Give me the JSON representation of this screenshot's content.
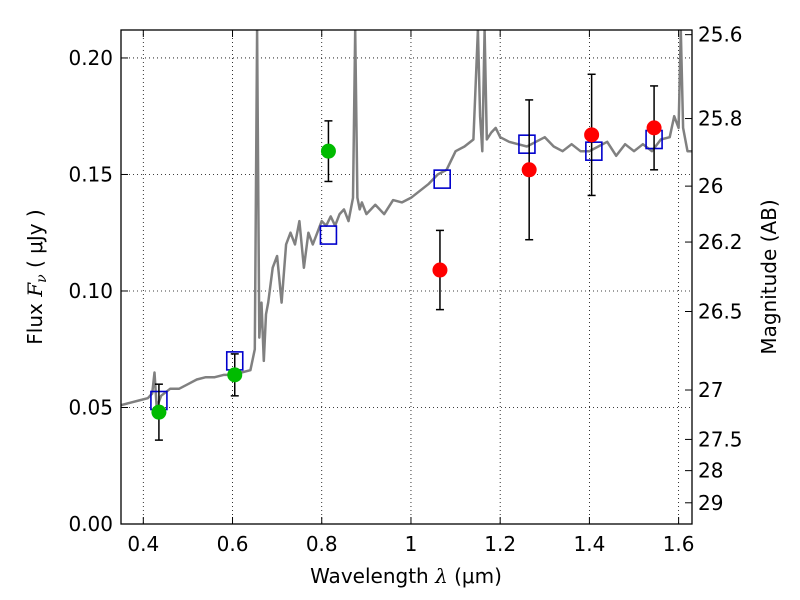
{
  "chart_data": {
    "type": "scatter",
    "xlabel": {
      "prefix": "Wavelength  ",
      "symbol": "λ",
      "unit": " (μm)"
    },
    "ylabel": {
      "prefix": "Flux  ",
      "symbol": "F",
      "sub": "ν",
      "unit": "  ( μJy )"
    },
    "y2label": "Magnitude (AB)",
    "xlim": [
      0.35,
      1.63
    ],
    "ylim": [
      0.0,
      0.212
    ],
    "grid": true,
    "x_ticks": [
      0.4,
      0.6,
      0.8,
      1.0,
      1.2,
      1.4,
      1.6
    ],
    "x_tick_labels": [
      "0.4",
      "0.6",
      "0.8",
      "1",
      "1.2",
      "1.4",
      "1.6"
    ],
    "y_ticks": [
      0.0,
      0.05,
      0.1,
      0.15,
      0.2
    ],
    "y_tick_labels": [
      "0.00",
      "0.05",
      "0.10",
      "0.15",
      "0.20"
    ],
    "y2_ticks": [
      {
        "label": "25.6",
        "flux": 0.21
      },
      {
        "label": "25.8",
        "flux": 0.174
      },
      {
        "label": "26",
        "flux": 0.145
      },
      {
        "label": "26.2",
        "flux": 0.121
      },
      {
        "label": "26.5",
        "flux": 0.0912
      },
      {
        "label": "27",
        "flux": 0.0575
      },
      {
        "label": "27.5",
        "flux": 0.0363
      },
      {
        "label": "28",
        "flux": 0.0229
      },
      {
        "label": "29",
        "flux": 0.0091
      }
    ],
    "series": [
      {
        "kind": "model_spectrum",
        "color": "#808080",
        "x": [
          0.35,
          0.37,
          0.39,
          0.41,
          0.42,
          0.425,
          0.43,
          0.44,
          0.46,
          0.48,
          0.5,
          0.52,
          0.54,
          0.56,
          0.58,
          0.6,
          0.62,
          0.64,
          0.65,
          0.655,
          0.66,
          0.665,
          0.67,
          0.675,
          0.68,
          0.69,
          0.7,
          0.71,
          0.72,
          0.73,
          0.74,
          0.75,
          0.76,
          0.77,
          0.78,
          0.79,
          0.8,
          0.81,
          0.82,
          0.83,
          0.84,
          0.85,
          0.86,
          0.87,
          0.875,
          0.88,
          0.885,
          0.89,
          0.9,
          0.92,
          0.94,
          0.96,
          0.98,
          1.0,
          1.02,
          1.04,
          1.06,
          1.08,
          1.1,
          1.12,
          1.14,
          1.15,
          1.155,
          1.16,
          1.165,
          1.17,
          1.18,
          1.19,
          1.2,
          1.22,
          1.24,
          1.26,
          1.28,
          1.3,
          1.32,
          1.34,
          1.36,
          1.38,
          1.4,
          1.42,
          1.44,
          1.46,
          1.48,
          1.5,
          1.52,
          1.54,
          1.56,
          1.58,
          1.59,
          1.6,
          1.605,
          1.61,
          1.62,
          1.63
        ],
        "y": [
          0.051,
          0.052,
          0.053,
          0.054,
          0.056,
          0.065,
          0.05,
          0.055,
          0.058,
          0.058,
          0.06,
          0.062,
          0.063,
          0.063,
          0.064,
          0.064,
          0.065,
          0.066,
          0.075,
          0.212,
          0.08,
          0.095,
          0.07,
          0.09,
          0.095,
          0.11,
          0.115,
          0.095,
          0.12,
          0.125,
          0.12,
          0.13,
          0.11,
          0.125,
          0.12,
          0.125,
          0.13,
          0.128,
          0.132,
          0.128,
          0.133,
          0.135,
          0.13,
          0.14,
          0.212,
          0.14,
          0.135,
          0.138,
          0.133,
          0.137,
          0.133,
          0.139,
          0.138,
          0.14,
          0.143,
          0.146,
          0.15,
          0.152,
          0.16,
          0.162,
          0.165,
          0.212,
          0.175,
          0.16,
          0.212,
          0.165,
          0.168,
          0.17,
          0.166,
          0.164,
          0.163,
          0.162,
          0.164,
          0.166,
          0.162,
          0.16,
          0.163,
          0.16,
          0.16,
          0.162,
          0.164,
          0.158,
          0.163,
          0.16,
          0.163,
          0.16,
          0.165,
          0.166,
          0.175,
          0.17,
          0.212,
          0.17,
          0.16,
          0.16
        ]
      },
      {
        "kind": "model_box",
        "color": "#0000cc",
        "x": [
          0.435,
          0.605,
          0.815,
          1.07,
          1.26,
          1.41,
          1.545
        ],
        "y": [
          0.053,
          0.07,
          0.124,
          0.148,
          0.163,
          0.16,
          0.165
        ]
      },
      {
        "kind": "observed_green",
        "color": "#00bb00",
        "x": [
          0.435,
          0.605,
          0.815
        ],
        "y": [
          0.048,
          0.064,
          0.16
        ],
        "err": [
          0.012,
          0.009,
          0.013
        ]
      },
      {
        "kind": "observed_red",
        "color": "#ff0000",
        "x": [
          1.065,
          1.265,
          1.405,
          1.545
        ],
        "y": [
          0.109,
          0.152,
          0.167,
          0.17
        ],
        "err": [
          0.017,
          0.03,
          0.026,
          0.018
        ]
      }
    ]
  }
}
